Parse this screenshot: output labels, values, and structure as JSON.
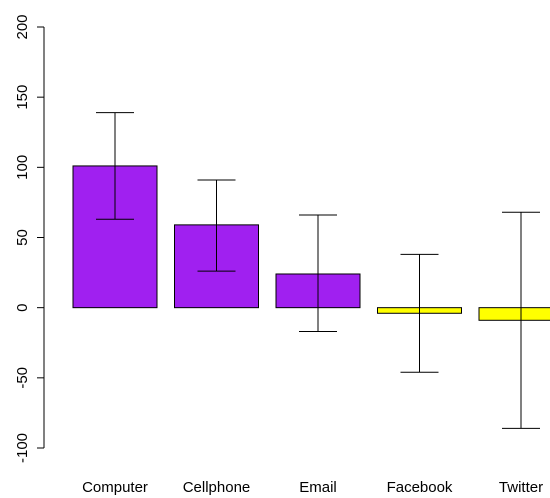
{
  "chart_data": {
    "type": "bar",
    "categories": [
      "Computer",
      "Cellphone",
      "Email",
      "Facebook",
      "Twitter"
    ],
    "values": [
      101,
      59,
      24,
      -4,
      -9
    ],
    "error_low": [
      63,
      26,
      -17,
      -46,
      -86
    ],
    "error_high": [
      139,
      91,
      66,
      38,
      68
    ],
    "bar_colors": [
      "#a020f0",
      "#a020f0",
      "#a020f0",
      "#ffff00",
      "#ffff00"
    ],
    "ylim": [
      -100,
      200
    ],
    "yticks": [
      -100,
      -50,
      0,
      50,
      100,
      150,
      200
    ],
    "ytick_labels": [
      "-100",
      "-50",
      "0",
      "50",
      "100",
      "150",
      "200"
    ],
    "title": "",
    "xlabel": "",
    "ylabel": "",
    "grid": false
  }
}
